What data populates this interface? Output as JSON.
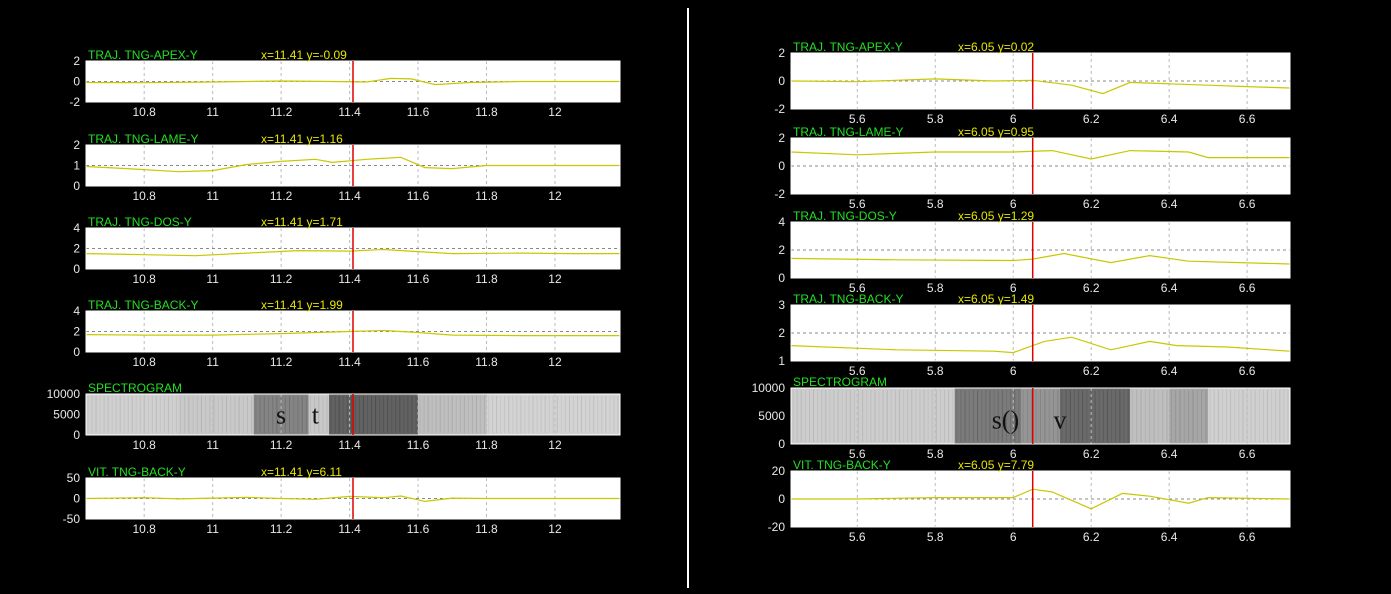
{
  "colors": {
    "background": "#000000",
    "axes_bg": "#ffffff",
    "trace": "#e6e600",
    "title": "#22e022",
    "cursor": "#e00000",
    "reference_line": "#ffffff",
    "grid": "#ffffff",
    "tick_label": "#e8e8e8"
  },
  "chart_data": [
    {
      "figure": "left",
      "type": "line",
      "xlim": [
        10.63,
        12.19
      ],
      "xticks": [
        10.8,
        11,
        11.2,
        11.4,
        11.6,
        11.8,
        12
      ],
      "xtick_labels": [
        "10.8",
        "11",
        "11.2",
        "11.4",
        "11.6",
        "11.8",
        "12"
      ],
      "cursor_x": 11.41,
      "grid": true,
      "panels": [
        {
          "title": "TRAJ. TNG-APEX-Y",
          "readout": "x=11.41  y=-0.09",
          "ylim": [
            -2,
            2
          ],
          "yticks": [
            "2",
            "0",
            "-2"
          ],
          "reference_y": 0,
          "series": [
            [
              10.63,
              -0.1
            ],
            [
              10.8,
              -0.12
            ],
            [
              11.0,
              -0.05
            ],
            [
              11.2,
              0.05
            ],
            [
              11.35,
              0.0
            ],
            [
              11.45,
              -0.05
            ],
            [
              11.52,
              0.3
            ],
            [
              11.58,
              0.25
            ],
            [
              11.65,
              -0.3
            ],
            [
              11.75,
              -0.1
            ],
            [
              11.9,
              0.0
            ],
            [
              12.19,
              0.0
            ]
          ]
        },
        {
          "title": "TRAJ. TNG-LAME-Y",
          "readout": "x=11.41  y=1.16",
          "ylim": [
            0,
            2
          ],
          "yticks": [
            "2",
            "1",
            "0"
          ],
          "reference_y": 1,
          "series": [
            [
              10.63,
              0.95
            ],
            [
              10.75,
              0.85
            ],
            [
              10.9,
              0.7
            ],
            [
              11.0,
              0.75
            ],
            [
              11.1,
              1.05
            ],
            [
              11.2,
              1.2
            ],
            [
              11.3,
              1.3
            ],
            [
              11.35,
              1.15
            ],
            [
              11.45,
              1.3
            ],
            [
              11.55,
              1.4
            ],
            [
              11.62,
              0.9
            ],
            [
              11.7,
              0.85
            ],
            [
              11.8,
              1.0
            ],
            [
              11.9,
              1.0
            ],
            [
              12.1,
              1.0
            ],
            [
              12.19,
              1.0
            ]
          ]
        },
        {
          "title": "TRAJ. TNG-DOS-Y",
          "readout": "x=11.41  y=1.71",
          "ylim": [
            0,
            4
          ],
          "yticks": [
            "4",
            "2",
            "0"
          ],
          "reference_y": 2,
          "series": [
            [
              10.63,
              1.5
            ],
            [
              10.8,
              1.4
            ],
            [
              10.95,
              1.3
            ],
            [
              11.1,
              1.55
            ],
            [
              11.25,
              1.8
            ],
            [
              11.4,
              1.75
            ],
            [
              11.5,
              1.9
            ],
            [
              11.6,
              1.7
            ],
            [
              11.7,
              1.5
            ],
            [
              11.9,
              1.55
            ],
            [
              12.05,
              1.5
            ],
            [
              12.19,
              1.5
            ]
          ]
        },
        {
          "title": "TRAJ. TNG-BACK-Y",
          "readout": "x=11.41  y=1.99",
          "ylim": [
            0,
            4
          ],
          "yticks": [
            "4",
            "2",
            "0"
          ],
          "reference_y": 2,
          "series": [
            [
              10.63,
              1.7
            ],
            [
              10.8,
              1.65
            ],
            [
              11.0,
              1.65
            ],
            [
              11.2,
              1.8
            ],
            [
              11.4,
              2.0
            ],
            [
              11.5,
              2.1
            ],
            [
              11.6,
              1.9
            ],
            [
              11.7,
              1.65
            ],
            [
              11.9,
              1.6
            ],
            [
              12.19,
              1.6
            ]
          ]
        },
        {
          "title": "SPECTROGRAM",
          "type": "heatmap",
          "ylim": [
            0,
            11000
          ],
          "yticks": [
            "10000",
            "5000",
            "0"
          ],
          "annotations": [
            "s",
            "t"
          ],
          "bands": [
            [
              10.63,
              10.9,
              0.1
            ],
            [
              10.9,
              11.12,
              0.14
            ],
            [
              11.12,
              11.28,
              0.55
            ],
            [
              11.28,
              11.34,
              0.15
            ],
            [
              11.34,
              11.6,
              0.75
            ],
            [
              11.6,
              11.8,
              0.2
            ],
            [
              11.8,
              12.19,
              0.08
            ]
          ]
        },
        {
          "title": "VIT. TNG-BACK-Y",
          "readout": "x=11.41  y=6.11",
          "ylim": [
            -50,
            50
          ],
          "yticks": [
            "50",
            "0",
            "-50"
          ],
          "reference_y": 0,
          "series": [
            [
              10.63,
              0
            ],
            [
              10.8,
              2
            ],
            [
              10.9,
              -1
            ],
            [
              11.0,
              1
            ],
            [
              11.1,
              3
            ],
            [
              11.2,
              0
            ],
            [
              11.3,
              -2
            ],
            [
              11.4,
              5
            ],
            [
              11.5,
              2
            ],
            [
              11.55,
              6
            ],
            [
              11.62,
              -7
            ],
            [
              11.7,
              1
            ],
            [
              11.8,
              0
            ],
            [
              12.19,
              0
            ]
          ]
        }
      ]
    },
    {
      "figure": "right",
      "type": "line",
      "xlim": [
        5.43,
        6.71
      ],
      "xticks": [
        5.6,
        5.8,
        6,
        6.2,
        6.4,
        6.6
      ],
      "xtick_labels": [
        "5.6",
        "5.8",
        "6",
        "6.2",
        "6.4",
        "6.6"
      ],
      "cursor_x": 6.05,
      "grid": true,
      "panels": [
        {
          "title": "TRAJ. TNG-APEX-Y",
          "readout": "x=6.05  y=0.02",
          "ylim": [
            -2,
            2
          ],
          "yticks": [
            "2",
            "0",
            "-2"
          ],
          "reference_y": 0,
          "series": [
            [
              5.43,
              0.0
            ],
            [
              5.6,
              -0.05
            ],
            [
              5.8,
              0.15
            ],
            [
              5.95,
              0.0
            ],
            [
              6.05,
              0.05
            ],
            [
              6.15,
              -0.3
            ],
            [
              6.23,
              -0.9
            ],
            [
              6.3,
              -0.1
            ],
            [
              6.5,
              -0.3
            ],
            [
              6.6,
              -0.4
            ],
            [
              6.71,
              -0.5
            ]
          ]
        },
        {
          "title": "TRAJ. TNG-LAME-Y",
          "readout": "x=6.05  y=0.95",
          "ylim": [
            -2,
            2
          ],
          "yticks": [
            "2",
            "0",
            "-2"
          ],
          "reference_y": 0,
          "series": [
            [
              5.43,
              1.0
            ],
            [
              5.6,
              0.8
            ],
            [
              5.8,
              1.0
            ],
            [
              6.0,
              1.0
            ],
            [
              6.1,
              1.1
            ],
            [
              6.2,
              0.5
            ],
            [
              6.3,
              1.1
            ],
            [
              6.45,
              1.0
            ],
            [
              6.5,
              0.6
            ],
            [
              6.71,
              0.6
            ]
          ]
        },
        {
          "title": "TRAJ. TNG-DOS-Y",
          "readout": "x=6.05  y=1.29",
          "ylim": [
            0,
            4
          ],
          "yticks": [
            "4",
            "2",
            "0"
          ],
          "reference_y": 2,
          "series": [
            [
              5.43,
              1.4
            ],
            [
              5.7,
              1.3
            ],
            [
              6.0,
              1.25
            ],
            [
              6.05,
              1.35
            ],
            [
              6.13,
              1.75
            ],
            [
              6.25,
              1.1
            ],
            [
              6.35,
              1.6
            ],
            [
              6.45,
              1.2
            ],
            [
              6.71,
              1.0
            ]
          ]
        },
        {
          "title": "TRAJ. TNG-BACK-Y",
          "readout": "x=6.05  y=1.49",
          "ylim": [
            1,
            3
          ],
          "yticks": [
            "3",
            "2",
            "1"
          ],
          "reference_y": 2,
          "series": [
            [
              5.43,
              1.55
            ],
            [
              5.7,
              1.4
            ],
            [
              5.95,
              1.35
            ],
            [
              6.0,
              1.3
            ],
            [
              6.08,
              1.7
            ],
            [
              6.15,
              1.85
            ],
            [
              6.25,
              1.4
            ],
            [
              6.35,
              1.7
            ],
            [
              6.42,
              1.55
            ],
            [
              6.55,
              1.5
            ],
            [
              6.71,
              1.35
            ]
          ]
        },
        {
          "title": "SPECTROGRAM",
          "type": "heatmap",
          "ylim": [
            0,
            11000
          ],
          "yticks": [
            "10000",
            "5000",
            "0"
          ],
          "annotations": [
            "s()",
            "v"
          ],
          "bands": [
            [
              5.43,
              5.85,
              0.12
            ],
            [
              5.85,
              6.02,
              0.6
            ],
            [
              6.02,
              6.12,
              0.45
            ],
            [
              6.12,
              6.3,
              0.7
            ],
            [
              6.3,
              6.4,
              0.2
            ],
            [
              6.4,
              6.5,
              0.35
            ],
            [
              6.5,
              6.71,
              0.1
            ]
          ]
        },
        {
          "title": "VIT. TNG-BACK-Y",
          "readout": "x=6.05  y=7.79",
          "ylim": [
            -20,
            20
          ],
          "yticks": [
            "20",
            "0",
            "-20"
          ],
          "reference_y": 0,
          "series": [
            [
              5.43,
              0
            ],
            [
              5.6,
              0
            ],
            [
              5.8,
              1
            ],
            [
              6.0,
              1
            ],
            [
              6.05,
              7
            ],
            [
              6.1,
              5
            ],
            [
              6.2,
              -7
            ],
            [
              6.28,
              4
            ],
            [
              6.35,
              2
            ],
            [
              6.45,
              -3
            ],
            [
              6.5,
              1
            ],
            [
              6.71,
              0
            ]
          ]
        }
      ]
    }
  ]
}
